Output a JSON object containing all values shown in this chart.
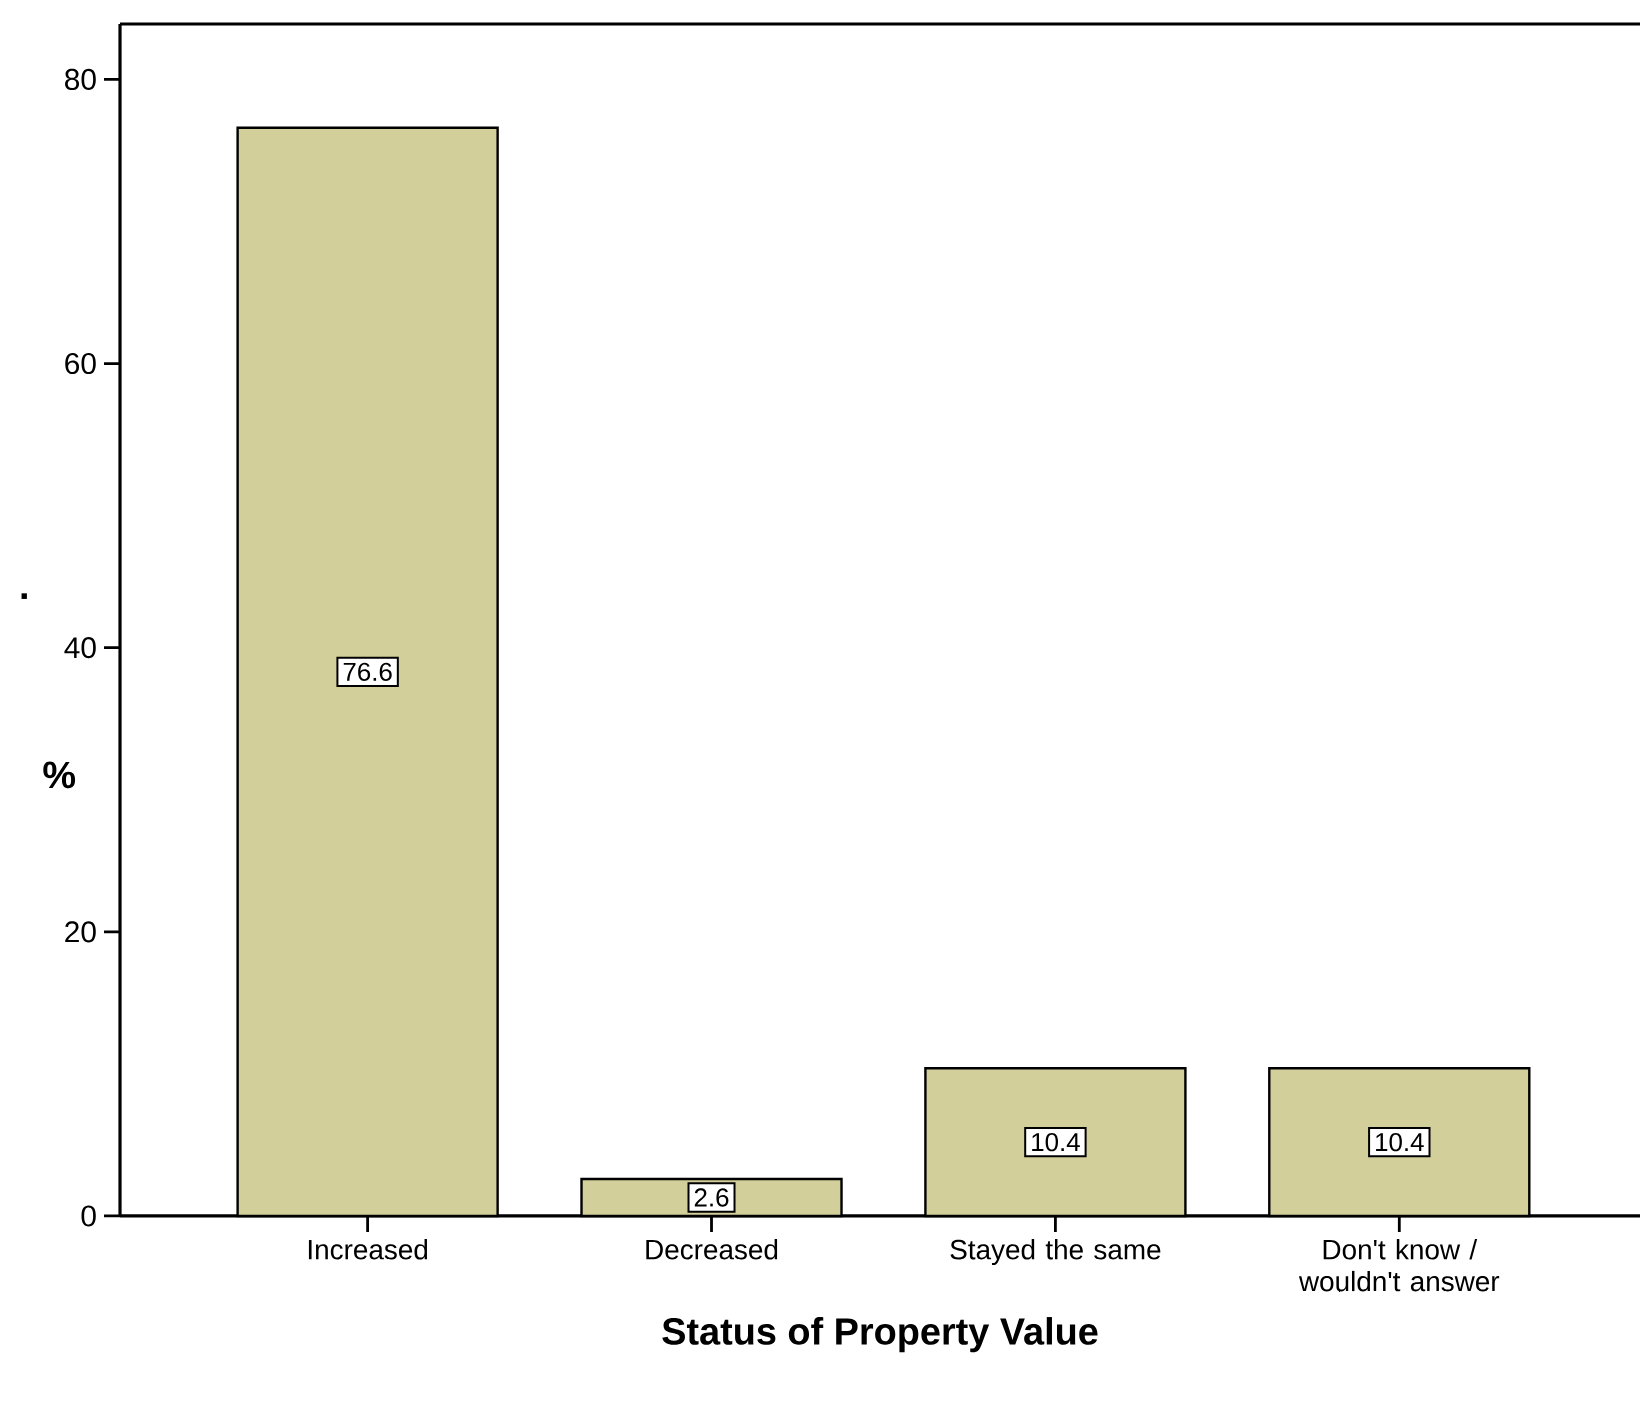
{
  "chart_data": {
    "type": "bar",
    "xlabel": "Status of Property Value",
    "ylabel": "%",
    "categories": [
      "Increased",
      "Decreased",
      "Stayed the same",
      "Don't know / wouldn't answer"
    ],
    "values": [
      76.6,
      2.6,
      10.4,
      10.4
    ],
    "color": "#d3cf9a",
    "data_labels": true,
    "ylim": [
      0,
      83.9
    ],
    "yticks": [
      0,
      20,
      40,
      60,
      80
    ],
    "grid": false,
    "annotations": [
      "."
    ]
  }
}
